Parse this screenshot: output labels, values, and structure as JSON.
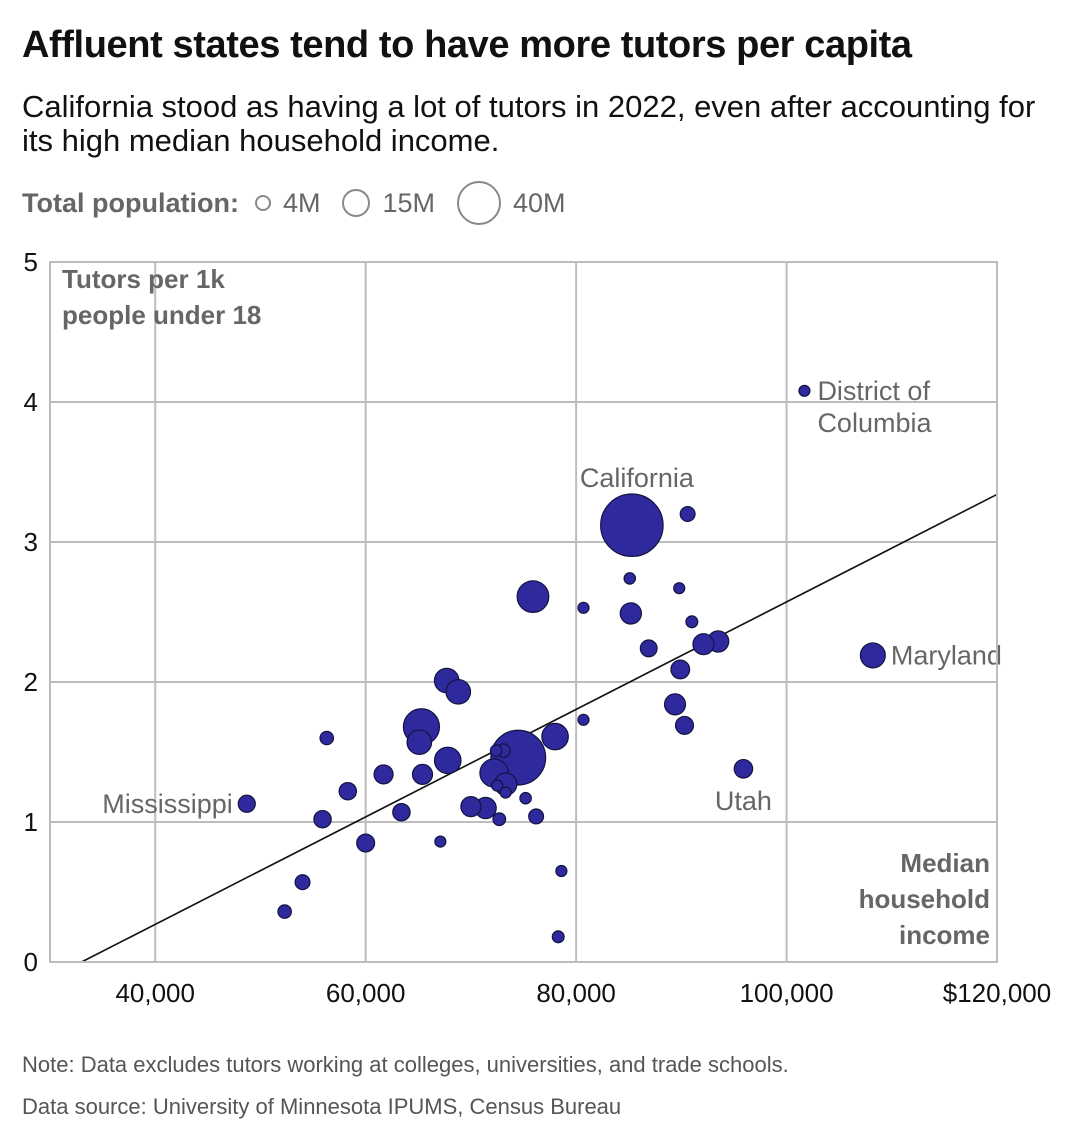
{
  "header": {
    "title": "Affluent states tend to have more tutors per capita",
    "subtitle": "California stood as having a lot of tutors in 2022, even after accounting for its high median household income."
  },
  "legend": {
    "title": "Total population:",
    "items": [
      {
        "label": "4M",
        "population": 4
      },
      {
        "label": "15M",
        "population": 15
      },
      {
        "label": "40M",
        "population": 40
      }
    ]
  },
  "notes": {
    "note": "Note: Data excludes tutors working at colleges, universities, and trade schools.",
    "source": "Data source: University of Minnesota IPUMS, Census Bureau"
  },
  "colors": {
    "point_fill": "#2E2A9E",
    "point_stroke": "#14123f",
    "grid": "#bdbdbd",
    "trend_line": "#111111",
    "label": "#666666"
  },
  "chart_data": {
    "type": "scatter",
    "xlabel": "Median household income",
    "ylabel": "Tutors per 1k people under 18",
    "xlim": [
      30000,
      120000
    ],
    "ylim": [
      0,
      5
    ],
    "x_ticks": [
      {
        "value": 40000,
        "label": "40,000"
      },
      {
        "value": 60000,
        "label": "60,000"
      },
      {
        "value": 80000,
        "label": "80,000"
      },
      {
        "value": 100000,
        "label": "100,000"
      },
      {
        "value": 120000,
        "label": "$120,000"
      }
    ],
    "y_ticks": [
      {
        "value": 0,
        "label": "0"
      },
      {
        "value": 1,
        "label": "1"
      },
      {
        "value": 2,
        "label": "2"
      },
      {
        "value": 3,
        "label": "3"
      },
      {
        "value": 4,
        "label": "4"
      },
      {
        "value": 5,
        "label": "5"
      }
    ],
    "grid": true,
    "trend_line": {
      "x": [
        33000,
        120000
      ],
      "y": [
        0,
        3.34
      ]
    },
    "points": [
      {
        "x": 85300,
        "y": 3.12,
        "pop": 39.0,
        "label": "California"
      },
      {
        "x": 101700,
        "y": 4.08,
        "pop": 0.7,
        "label": "District of Columbia"
      },
      {
        "x": 108200,
        "y": 2.19,
        "pop": 6.2,
        "label": "Maryland"
      },
      {
        "x": 95900,
        "y": 1.38,
        "pop": 3.4,
        "label": "Utah"
      },
      {
        "x": 48700,
        "y": 1.13,
        "pop": 2.9,
        "label": "Mississippi"
      },
      {
        "x": 74500,
        "y": 1.46,
        "pop": 30.0
      },
      {
        "x": 75900,
        "y": 2.61,
        "pop": 10.0
      },
      {
        "x": 65300,
        "y": 1.68,
        "pop": 13.0
      },
      {
        "x": 65100,
        "y": 1.57,
        "pop": 6.0
      },
      {
        "x": 67700,
        "y": 2.01,
        "pop": 6.0
      },
      {
        "x": 68800,
        "y": 1.93,
        "pop": 6.0
      },
      {
        "x": 67800,
        "y": 1.44,
        "pop": 7.0
      },
      {
        "x": 78000,
        "y": 1.61,
        "pop": 7.0
      },
      {
        "x": 72200,
        "y": 1.35,
        "pop": 8.0
      },
      {
        "x": 73300,
        "y": 1.27,
        "pop": 5.0
      },
      {
        "x": 65400,
        "y": 1.34,
        "pop": 4.0
      },
      {
        "x": 61700,
        "y": 1.34,
        "pop": 3.6
      },
      {
        "x": 58300,
        "y": 1.22,
        "pop": 3.0
      },
      {
        "x": 70000,
        "y": 1.11,
        "pop": 4.0
      },
      {
        "x": 71400,
        "y": 1.1,
        "pop": 4.5
      },
      {
        "x": 60000,
        "y": 0.85,
        "pop": 3.2
      },
      {
        "x": 63400,
        "y": 1.07,
        "pop": 3.0
      },
      {
        "x": 55900,
        "y": 1.02,
        "pop": 3.0
      },
      {
        "x": 54000,
        "y": 0.57,
        "pop": 2.2
      },
      {
        "x": 52300,
        "y": 0.36,
        "pop": 1.8
      },
      {
        "x": 56300,
        "y": 1.6,
        "pop": 1.8
      },
      {
        "x": 67100,
        "y": 0.86,
        "pop": 1.0
      },
      {
        "x": 72700,
        "y": 1.02,
        "pop": 1.6
      },
      {
        "x": 72400,
        "y": 1.51,
        "pop": 1.3
      },
      {
        "x": 73100,
        "y": 1.51,
        "pop": 1.8
      },
      {
        "x": 72500,
        "y": 1.26,
        "pop": 1.2
      },
      {
        "x": 73300,
        "y": 1.21,
        "pop": 1.1
      },
      {
        "x": 75200,
        "y": 1.17,
        "pop": 1.3
      },
      {
        "x": 76200,
        "y": 1.04,
        "pop": 2.2
      },
      {
        "x": 78600,
        "y": 0.65,
        "pop": 1.1
      },
      {
        "x": 78300,
        "y": 0.18,
        "pop": 1.4
      },
      {
        "x": 80700,
        "y": 1.73,
        "pop": 1.1
      },
      {
        "x": 80700,
        "y": 2.53,
        "pop": 1.2
      },
      {
        "x": 85100,
        "y": 2.74,
        "pop": 1.3
      },
      {
        "x": 85200,
        "y": 2.49,
        "pop": 4.5
      },
      {
        "x": 86900,
        "y": 2.24,
        "pop": 2.8
      },
      {
        "x": 89800,
        "y": 2.67,
        "pop": 1.0
      },
      {
        "x": 90600,
        "y": 3.2,
        "pop": 2.2
      },
      {
        "x": 91000,
        "y": 2.43,
        "pop": 1.4
      },
      {
        "x": 89400,
        "y": 1.84,
        "pop": 4.4
      },
      {
        "x": 89900,
        "y": 2.09,
        "pop": 3.5
      },
      {
        "x": 90300,
        "y": 1.69,
        "pop": 3.2
      },
      {
        "x": 92100,
        "y": 2.27,
        "pop": 4.4
      },
      {
        "x": 93500,
        "y": 2.29,
        "pop": 4.5
      }
    ]
  }
}
